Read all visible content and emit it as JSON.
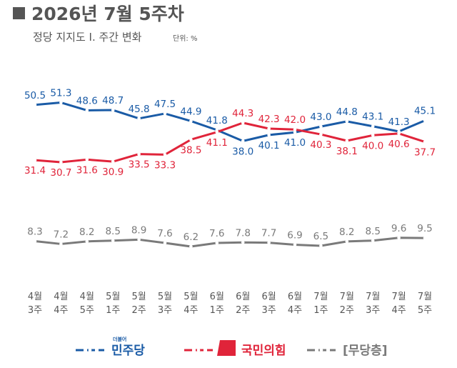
{
  "header": {
    "title": "2026년 7월 5주차",
    "subtitle": "정당 지지도 Ⅰ. 주간 변화",
    "unit": "단위: %"
  },
  "chart_data": {
    "type": "line",
    "categories": [
      [
        "4월",
        "3주"
      ],
      [
        "4월",
        "4주"
      ],
      [
        "4월",
        "5주"
      ],
      [
        "5월",
        "1주"
      ],
      [
        "5월",
        "2주"
      ],
      [
        "5월",
        "3주"
      ],
      [
        "5월",
        "4주"
      ],
      [
        "6월",
        "1주"
      ],
      [
        "6월",
        "2주"
      ],
      [
        "6월",
        "3주"
      ],
      [
        "6월",
        "4주"
      ],
      [
        "7월",
        "1주"
      ],
      [
        "7월",
        "2주"
      ],
      [
        "7월",
        "3주"
      ],
      [
        "7월",
        "4주"
      ],
      [
        "7월",
        "5주"
      ]
    ],
    "series": [
      {
        "name": "민주당",
        "color": "#1A5BA6",
        "values": [
          50.5,
          51.3,
          48.6,
          48.7,
          45.8,
          47.5,
          44.9,
          41.8,
          38.0,
          40.1,
          41.0,
          43.0,
          44.8,
          43.1,
          41.3,
          45.1
        ],
        "label_pos": [
          "above",
          "above",
          "above",
          "above",
          "above",
          "above",
          "above",
          "above",
          "below",
          "below",
          "below",
          "above",
          "above",
          "above",
          "above",
          "above"
        ]
      },
      {
        "name": "국민의힘",
        "color": "#E0243A",
        "values": [
          31.4,
          30.7,
          31.6,
          30.9,
          33.5,
          33.3,
          38.5,
          41.1,
          44.3,
          42.3,
          42.0,
          40.3,
          38.1,
          40.0,
          40.6,
          37.7
        ],
        "label_pos": [
          "below",
          "below",
          "below",
          "below",
          "below",
          "below",
          "below",
          "below",
          "above",
          "above",
          "above",
          "below",
          "below",
          "below",
          "below",
          "below"
        ]
      },
      {
        "name": "[무당층]",
        "color": "#7A7A7A",
        "values": [
          8.3,
          7.2,
          8.2,
          8.5,
          8.9,
          7.6,
          6.2,
          7.6,
          7.8,
          7.7,
          6.9,
          6.5,
          8.2,
          8.5,
          9.6,
          9.5
        ],
        "label_pos": [
          "above",
          "above",
          "above",
          "above",
          "above",
          "above",
          "above",
          "above",
          "above",
          "above",
          "above",
          "above",
          "above",
          "above",
          "above",
          "above"
        ]
      }
    ],
    "legend": {
      "placement": "bottom",
      "logo_small_text": "더불어"
    }
  }
}
